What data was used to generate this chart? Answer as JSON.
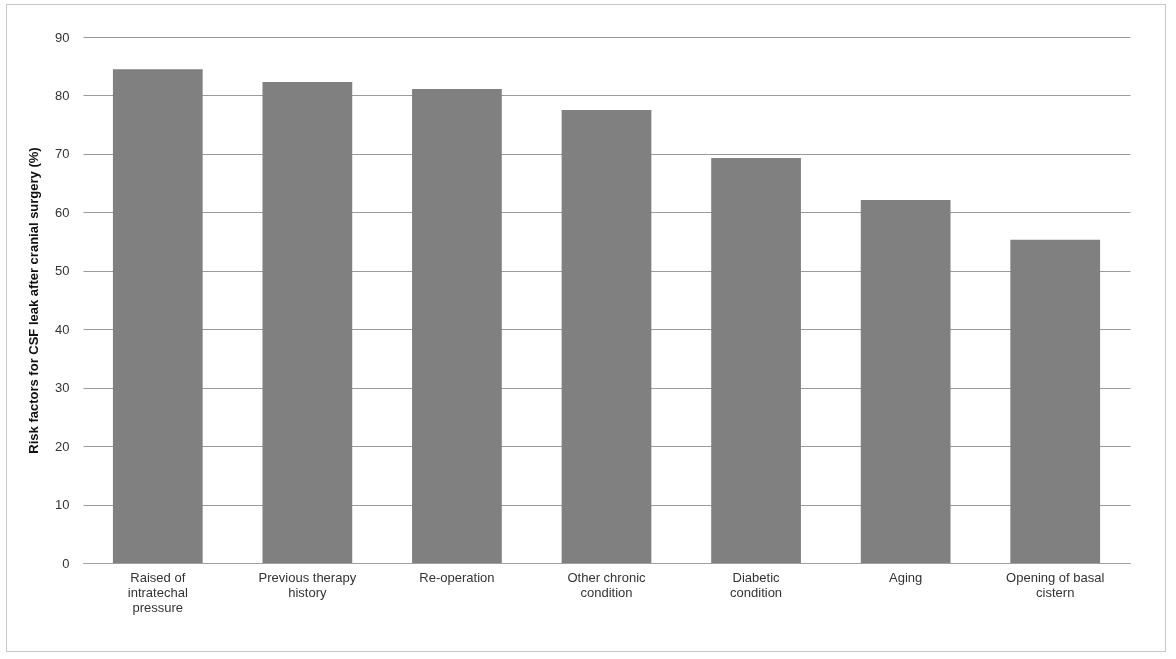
{
  "chart_data": {
    "type": "bar",
    "ylabel": "Risk factors for CSF leak after cranial surgery (%)",
    "categories": [
      "Raised of intratechal pressure",
      "Previous therapy history",
      "Re-operation",
      "Other chronic condition",
      "Diabetic condition",
      "Aging",
      "Opening of basal cistern"
    ],
    "values": [
      84.5,
      82.3,
      81.1,
      77.5,
      69.3,
      62.1,
      55.3
    ],
    "color": "#808080",
    "ylim": [
      0,
      90
    ],
    "yticks": [
      0,
      10,
      20,
      30,
      40,
      50,
      60,
      70,
      80,
      90
    ],
    "grid": "y"
  }
}
